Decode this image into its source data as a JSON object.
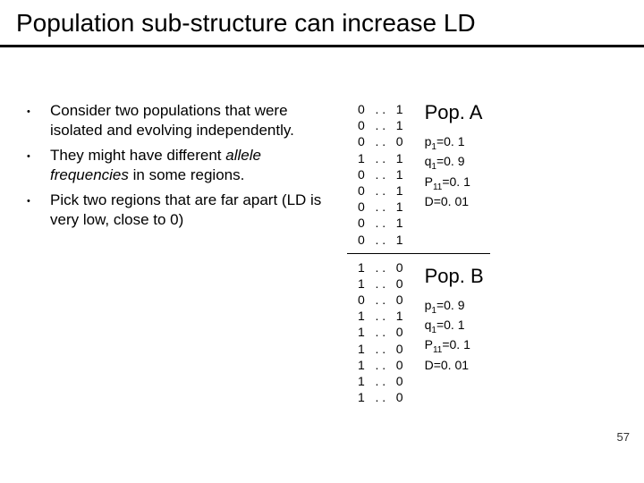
{
  "title": "Population sub-structure can increase LD",
  "bullets": [
    "Consider two populations that were isolated and evolving independently.",
    "They might have different allele frequencies in some regions.",
    "Pick two regions that are far apart (LD is very low, close to 0)"
  ],
  "popA": {
    "label": "Pop. A",
    "rows": [
      [
        "0",
        ". .",
        "1"
      ],
      [
        "0",
        ". .",
        "1"
      ],
      [
        "0",
        ". .",
        "0"
      ],
      [
        "1",
        ". .",
        "1"
      ],
      [
        "0",
        ". .",
        "1"
      ],
      [
        "0",
        ". .",
        "1"
      ],
      [
        "0",
        ". .",
        "1"
      ],
      [
        "0",
        ". .",
        "1"
      ],
      [
        "0",
        ". .",
        "1"
      ]
    ],
    "stats": {
      "p1": "p",
      "p1sub": "1",
      "p1val": "=0. 1",
      "q1": "q",
      "q1sub": "1",
      "q1val": "=0. 9",
      "P11": "P",
      "P11sub": "11",
      "P11val": "=0. 1",
      "D": "D=0. 01"
    }
  },
  "popB": {
    "label": "Pop. B",
    "rows": [
      [
        "1",
        ". .",
        "0"
      ],
      [
        "1",
        ". .",
        "0"
      ],
      [
        "0",
        ". .",
        "0"
      ],
      [
        "1",
        ". .",
        "1"
      ],
      [
        "1",
        ". .",
        "0"
      ],
      [
        "1",
        ". .",
        "0"
      ],
      [
        "1",
        ". .",
        "0"
      ],
      [
        "1",
        ". .",
        "0"
      ],
      [
        "1",
        ". .",
        "0"
      ]
    ],
    "stats": {
      "p1": "p",
      "p1sub": "1",
      "p1val": "=0. 9",
      "q1": "q",
      "q1sub": "1",
      "q1val": "=0. 1",
      "P11": "P",
      "P11sub": "11",
      "P11val": "=0. 1",
      "D": "D=0. 01"
    }
  },
  "pageNumber": "57",
  "italicPhrase": "allele frequencies",
  "colors": {
    "background": "#ffffff",
    "text": "#000000",
    "divider": "#000000"
  }
}
